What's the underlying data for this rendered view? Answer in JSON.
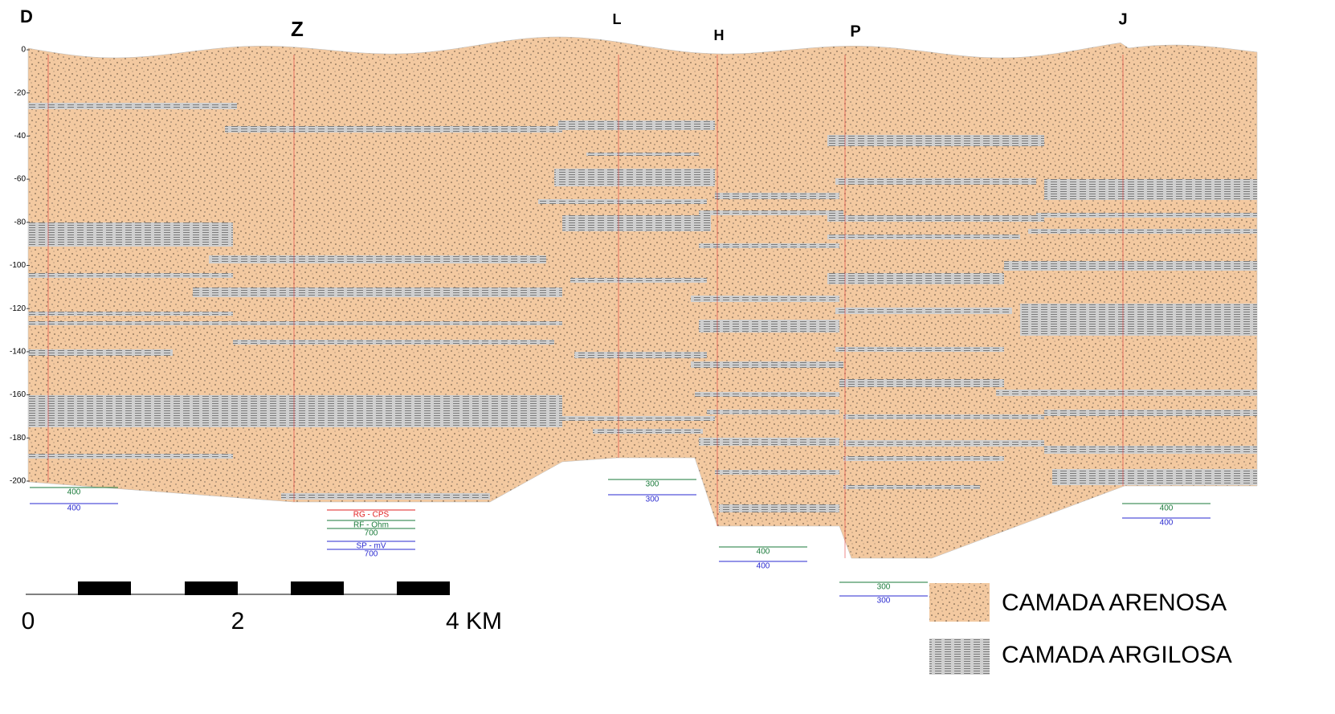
{
  "wells": [
    {
      "name": "D",
      "logs": [
        {
          "text": "400",
          "color": "#1a7a3a"
        },
        {
          "text": "400",
          "color": "#2a2ad0"
        }
      ]
    },
    {
      "name": "Z",
      "logs": [
        {
          "text": "RG - CPS",
          "color": "#e02020"
        },
        {
          "text": "RF - Ohm",
          "color": "#1a7a3a"
        },
        {
          "text": "700",
          "color": "#1a7a3a"
        },
        {
          "text": "SP - mV",
          "color": "#2a2ad0"
        },
        {
          "text": "700",
          "color": "#2a2ad0"
        }
      ]
    },
    {
      "name": "L",
      "logs": [
        {
          "text": "300",
          "color": "#1a7a3a"
        },
        {
          "text": "300",
          "color": "#2a2ad0"
        }
      ]
    },
    {
      "name": "H",
      "logs": [
        {
          "text": "400",
          "color": "#1a7a3a"
        },
        {
          "text": "400",
          "color": "#2a2ad0"
        }
      ]
    },
    {
      "name": "P",
      "logs": [
        {
          "text": "300",
          "color": "#1a7a3a"
        },
        {
          "text": "300",
          "color": "#2a2ad0"
        }
      ]
    },
    {
      "name": "J",
      "logs": [
        {
          "text": "400",
          "color": "#1a7a3a"
        },
        {
          "text": "400",
          "color": "#2a2ad0"
        }
      ]
    }
  ],
  "depth_axis": {
    "ticks": [
      0,
      -20,
      -40,
      -60,
      -80,
      -100,
      -120,
      -140,
      -160,
      -180,
      -200
    ]
  },
  "scale_bar": {
    "labels": [
      "0",
      "2",
      "4 KM"
    ]
  },
  "legend": {
    "items": [
      "CAMADA ARENOSA",
      "CAMADA ARGILOSA"
    ]
  }
}
